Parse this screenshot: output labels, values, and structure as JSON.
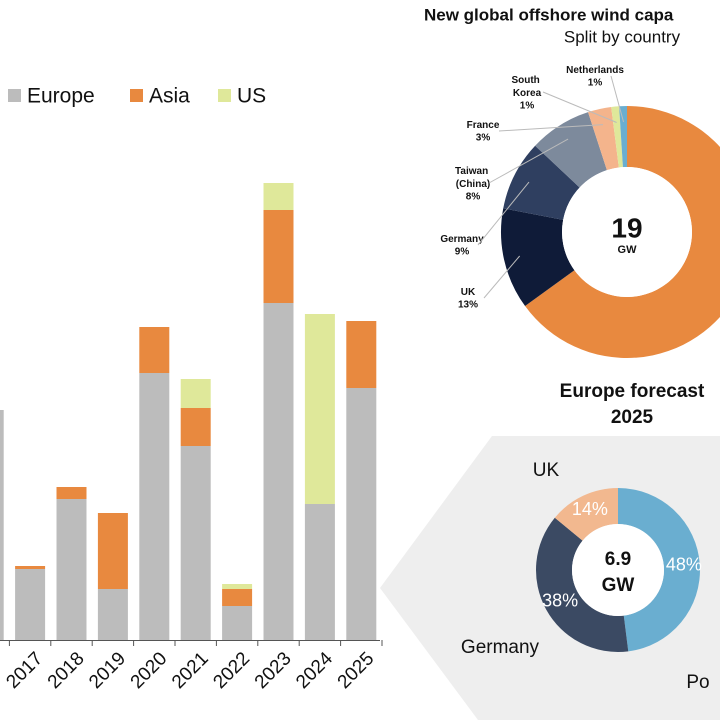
{
  "chart_data": [
    {
      "type": "bar",
      "stacked": true,
      "categories": [
        null,
        "2017",
        "2018",
        "2019",
        "2020",
        "2021",
        "2022",
        "2023",
        "2024",
        "2025"
      ],
      "series": [
        {
          "name": "Europe",
          "color": "#bcbcbc",
          "values": [
            23.0,
            7.1,
            14.1,
            5.1,
            26.7,
            19.4,
            3.4,
            33.7,
            13.6,
            25.2
          ]
        },
        {
          "name": "Asia",
          "color": "#e8893f",
          "values": [
            0,
            0.3,
            1.2,
            7.6,
            4.6,
            3.8,
            1.7,
            9.3,
            0,
            6.7
          ]
        },
        {
          "name": "US",
          "color": "#dfe89a",
          "values": [
            0,
            0,
            0,
            0,
            0,
            2.9,
            0.5,
            2.7,
            19.0,
            0
          ]
        }
      ],
      "ylim": [
        0,
        50
      ]
    },
    {
      "type": "donut",
      "title": "New global offshore wind capa",
      "subtitle": "Split by country",
      "center_value": "19",
      "center_unit": "GW",
      "labels": [
        null,
        "UK",
        "Germany",
        "Taiwan (China)",
        "France",
        "South Korea",
        "Netherlands"
      ],
      "values": [
        65,
        13,
        9,
        8,
        3,
        1,
        1
      ],
      "value_labels": [
        null,
        "13%",
        "9%",
        "8%",
        "3%",
        "1%",
        "1%"
      ],
      "colors": [
        "#e8893f",
        "#0f1b38",
        "#2f3f60",
        "#7d8a9c",
        "#f4b48c",
        "#dfe89a",
        "#6aaed0"
      ]
    },
    {
      "type": "donut",
      "title": "Europe forecast",
      "subtitle": "2025",
      "center_value": "6.9",
      "center_unit": "GW",
      "labels": [
        "Po",
        "Germany",
        "UK"
      ],
      "values": [
        48,
        38,
        14
      ],
      "value_labels": [
        "48%",
        "38%",
        "14%"
      ],
      "colors": [
        "#6aaed0",
        "#3b4a63",
        "#f2b88f"
      ]
    }
  ]
}
